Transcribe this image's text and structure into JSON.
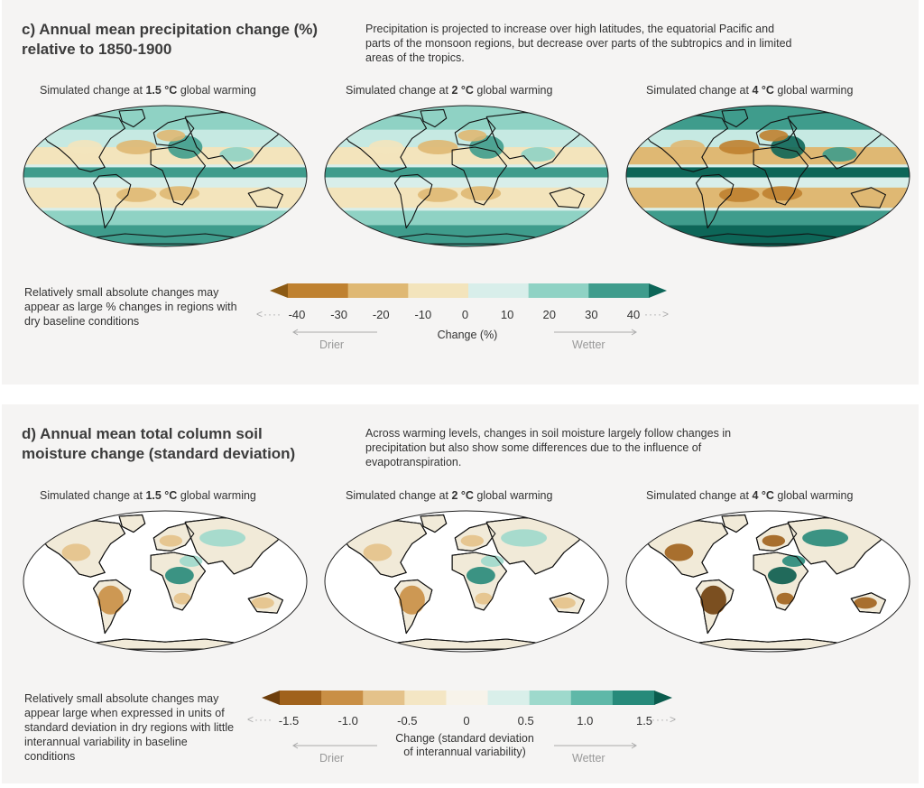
{
  "panel_c": {
    "title": "c) Annual mean precipitation change (%) relative to 1850-1900",
    "description": "Precipitation is projected to increase over high latitudes, the equatorial Pacific and parts of the monsoon regions, but decrease over parts of the subtropics and in limited areas of the tropics.",
    "maps": [
      {
        "prefix": "Simulated change at ",
        "level": "1.5 °C",
        "suffix": " global warming"
      },
      {
        "prefix": "Simulated change at ",
        "level": "2 °C",
        "suffix": " global warming"
      },
      {
        "prefix": "Simulated change at ",
        "level": "4 °C",
        "suffix": " global warming"
      }
    ],
    "note": "Relatively small absolute changes may appear as large % changes in regions with dry baseline conditions",
    "colorbar": {
      "ticks": [
        "-40",
        "-30",
        "-20",
        "-10",
        "0",
        "10",
        "20",
        "30",
        "40"
      ],
      "label": "Change (%)",
      "drier": "Drier",
      "wetter": "Wetter",
      "colors": [
        "#8c5a14",
        "#bf8130",
        "#dfb873",
        "#f3e4bc",
        "#d8eeea",
        "#8fd2c4",
        "#3f9c8c",
        "#0d6658"
      ]
    }
  },
  "panel_d": {
    "title": "d) Annual mean total column soil moisture change (standard deviation)",
    "description": "Across warming levels, changes in soil moisture largely follow changes in precipitation but also show some differences due to the influence of evapotranspiration.",
    "maps": [
      {
        "prefix": "Simulated change at ",
        "level": "1.5 °C",
        "suffix": " global warming"
      },
      {
        "prefix": "Simulated change at ",
        "level": "2 °C",
        "suffix": " global warming"
      },
      {
        "prefix": "Simulated change at ",
        "level": "4 °C",
        "suffix": " global warming"
      }
    ],
    "note": "Relatively small absolute changes may appear large when expressed in units of standard deviation in dry regions with little interannual variability in baseline conditions",
    "colorbar": {
      "ticks": [
        "-1.5",
        "-1.0",
        "-0.5",
        "0",
        "0.5",
        "1.0",
        "1.5"
      ],
      "label_line1": "Change (standard deviation",
      "label_line2": "of interannual variability)",
      "drier": "Drier",
      "wetter": "Wetter",
      "colors": [
        "#6e3e0c",
        "#a0621c",
        "#c98f45",
        "#e4c28a",
        "#f4e6c4",
        "#f7f3ea",
        "#d9efea",
        "#9ed9cc",
        "#5fb8a8",
        "#278a7a",
        "#0a5c4e"
      ]
    }
  }
}
